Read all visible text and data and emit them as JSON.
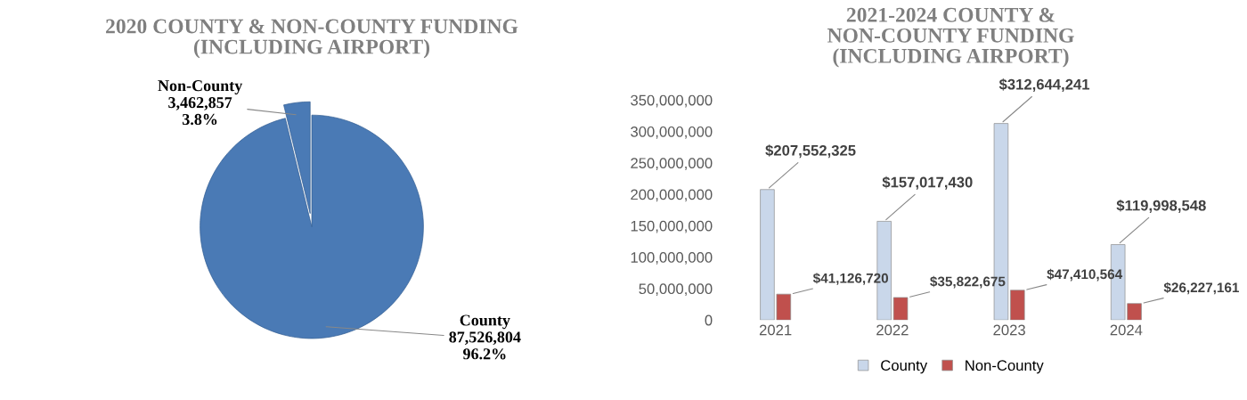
{
  "chart_data": [
    {
      "type": "pie",
      "title": "2020 COUNTY & NON-COUNTY FUNDING\n(INCLUDING AIRPORT)",
      "categories": [
        "Non-County",
        "County"
      ],
      "values": [
        3462857,
        87526804
      ],
      "value_labels": [
        "3,462,857\n3.8%",
        "87,526,804\n96.2%"
      ],
      "colors": [
        "#4a7ab5",
        "#4a7ab5"
      ],
      "legend": false
    },
    {
      "type": "bar",
      "title": "2021-2024 COUNTY &\nNON-COUNTY FUNDING\n(INCLUDING AIRPORT)",
      "categories": [
        "2021",
        "2022",
        "2023",
        "2024"
      ],
      "series": [
        {
          "name": "County",
          "color": "#c9d7ea",
          "values": [
            207552325,
            157017430,
            312644241,
            119998548
          ],
          "value_labels": [
            "$207,552,325",
            "$157,017,430",
            "$312,644,241",
            "$119,998,548"
          ]
        },
        {
          "name": "Non-County",
          "color": "#c0504d",
          "values": [
            41126720,
            35822675,
            47410564,
            26227161
          ],
          "value_labels": [
            "$41,126,720",
            "$35,822,675",
            "$47,410,564",
            "$26,227,161"
          ]
        }
      ],
      "ylim": [
        0,
        350000000
      ],
      "yticks": [
        0,
        {
          "value": 50000000,
          "label": "50,000,000"
        },
        {
          "value": 100000000,
          "label": "100,000,000"
        },
        {
          "value": 150000000,
          "label": "150,000,000"
        },
        {
          "value": 200000000,
          "label": "200,000,000"
        },
        {
          "value": 250000000,
          "label": "250,000,000"
        },
        {
          "value": 300000000,
          "label": "300,000,000"
        },
        {
          "value": 350000000,
          "label": "350,000,000"
        }
      ],
      "grid": false,
      "legend": "bottom"
    }
  ]
}
